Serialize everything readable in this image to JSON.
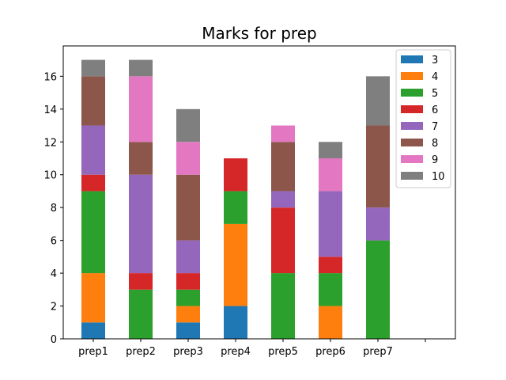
{
  "chart_data": {
    "type": "bar",
    "stacked": true,
    "title": "Marks for prep",
    "xlabel": "",
    "ylabel": "",
    "categories": [
      "prep1",
      "prep2",
      "prep3",
      "prep4",
      "prep5",
      "prep6",
      "prep7",
      ""
    ],
    "ylim": [
      0,
      17.85
    ],
    "yticks": [
      0,
      2,
      4,
      6,
      8,
      10,
      12,
      14,
      16
    ],
    "grid": false,
    "legend_position": "top-right",
    "series": [
      {
        "name": "3",
        "color": "#1f77b4",
        "values": [
          1,
          0,
          1,
          2,
          0,
          0,
          0,
          0
        ]
      },
      {
        "name": "4",
        "color": "#ff7f0e",
        "values": [
          3,
          0,
          1,
          5,
          0,
          2,
          0,
          0
        ]
      },
      {
        "name": "5",
        "color": "#2ca02c",
        "values": [
          5,
          3,
          1,
          2,
          4,
          2,
          6,
          0
        ]
      },
      {
        "name": "6",
        "color": "#d62728",
        "values": [
          1,
          1,
          1,
          2,
          4,
          1,
          0,
          0
        ]
      },
      {
        "name": "7",
        "color": "#9467bd",
        "values": [
          3,
          6,
          2,
          0,
          1,
          4,
          2,
          0
        ]
      },
      {
        "name": "8",
        "color": "#8c564b",
        "values": [
          3,
          2,
          4,
          0,
          3,
          0,
          5,
          0
        ]
      },
      {
        "name": "9",
        "color": "#e377c2",
        "values": [
          0,
          4,
          2,
          0,
          1,
          2,
          0,
          0
        ]
      },
      {
        "name": "10",
        "color": "#7f7f7f",
        "values": [
          1,
          1,
          2,
          0,
          0,
          1,
          3,
          0
        ]
      }
    ]
  }
}
